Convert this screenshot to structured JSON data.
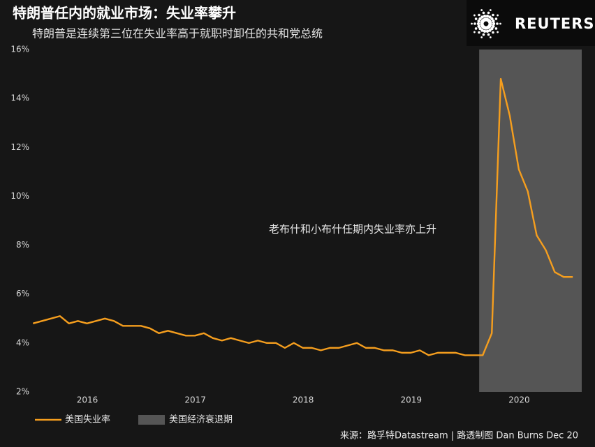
{
  "chart_data": {
    "type": "line",
    "title": "特朗普任内的就业市场：失业率攀升",
    "subtitle": "特朗普是连续第三位在失业率高于就职时卸任的共和党总统",
    "brand": "REUTERS",
    "annotation": "老布什和小布什任期内失业率亦上升",
    "source": "来源：路孚特Datastream | 路透制图 Dan Burns Dec 20",
    "x": [
      2015.917,
      2016.0,
      2016.083,
      2016.167,
      2016.25,
      2016.333,
      2016.417,
      2016.5,
      2016.583,
      2016.667,
      2016.75,
      2016.833,
      2016.917,
      2017.0,
      2017.083,
      2017.167,
      2017.25,
      2017.333,
      2017.417,
      2017.5,
      2017.583,
      2017.667,
      2017.75,
      2017.833,
      2017.917,
      2018.0,
      2018.083,
      2018.167,
      2018.25,
      2018.333,
      2018.417,
      2018.5,
      2018.583,
      2018.667,
      2018.75,
      2018.833,
      2018.917,
      2019.0,
      2019.083,
      2019.167,
      2019.25,
      2019.333,
      2019.417,
      2019.5,
      2019.583,
      2019.667,
      2019.75,
      2019.833,
      2019.917,
      2020.0,
      2020.083,
      2020.167,
      2020.25,
      2020.333,
      2020.417,
      2020.5,
      2020.583,
      2020.667,
      2020.75,
      2020.833,
      2020.917
    ],
    "series": [
      {
        "name": "美国失业率",
        "color": "#f59e1e",
        "values": [
          4.8,
          4.9,
          5.0,
          5.1,
          4.8,
          4.9,
          4.8,
          4.9,
          5.0,
          4.9,
          4.7,
          4.7,
          4.7,
          4.6,
          4.4,
          4.5,
          4.4,
          4.3,
          4.3,
          4.4,
          4.2,
          4.1,
          4.2,
          4.1,
          4.0,
          4.1,
          4.0,
          4.0,
          3.8,
          4.0,
          3.8,
          3.8,
          3.7,
          3.8,
          3.8,
          3.9,
          4.0,
          3.8,
          3.8,
          3.7,
          3.7,
          3.6,
          3.6,
          3.7,
          3.5,
          3.6,
          3.6,
          3.6,
          3.5,
          3.5,
          3.5,
          4.4,
          14.8,
          13.3,
          11.1,
          10.2,
          8.4,
          7.8,
          6.9,
          6.7,
          6.7
        ]
      }
    ],
    "recession": {
      "name": "美国经济衰退期",
      "color": "#555555",
      "start": 2020.05,
      "end": 2021.0
    },
    "xlim": [
      2015.87,
      2021.0
    ],
    "xticks": [
      {
        "value": 2016.42,
        "label": "2016"
      },
      {
        "value": 2017.42,
        "label": "2017"
      },
      {
        "value": 2018.42,
        "label": "2018"
      },
      {
        "value": 2019.42,
        "label": "2019"
      },
      {
        "value": 2020.42,
        "label": "2020"
      }
    ],
    "ylim": [
      2,
      16
    ],
    "yticks": [
      {
        "value": 2,
        "label": "2%"
      },
      {
        "value": 4,
        "label": "4%"
      },
      {
        "value": 6,
        "label": "6%"
      },
      {
        "value": 8,
        "label": "8%"
      },
      {
        "value": 10,
        "label": "10%"
      },
      {
        "value": 12,
        "label": "12%"
      },
      {
        "value": 14,
        "label": "14%"
      },
      {
        "value": 16,
        "label": "16%"
      }
    ],
    "grid": false
  }
}
